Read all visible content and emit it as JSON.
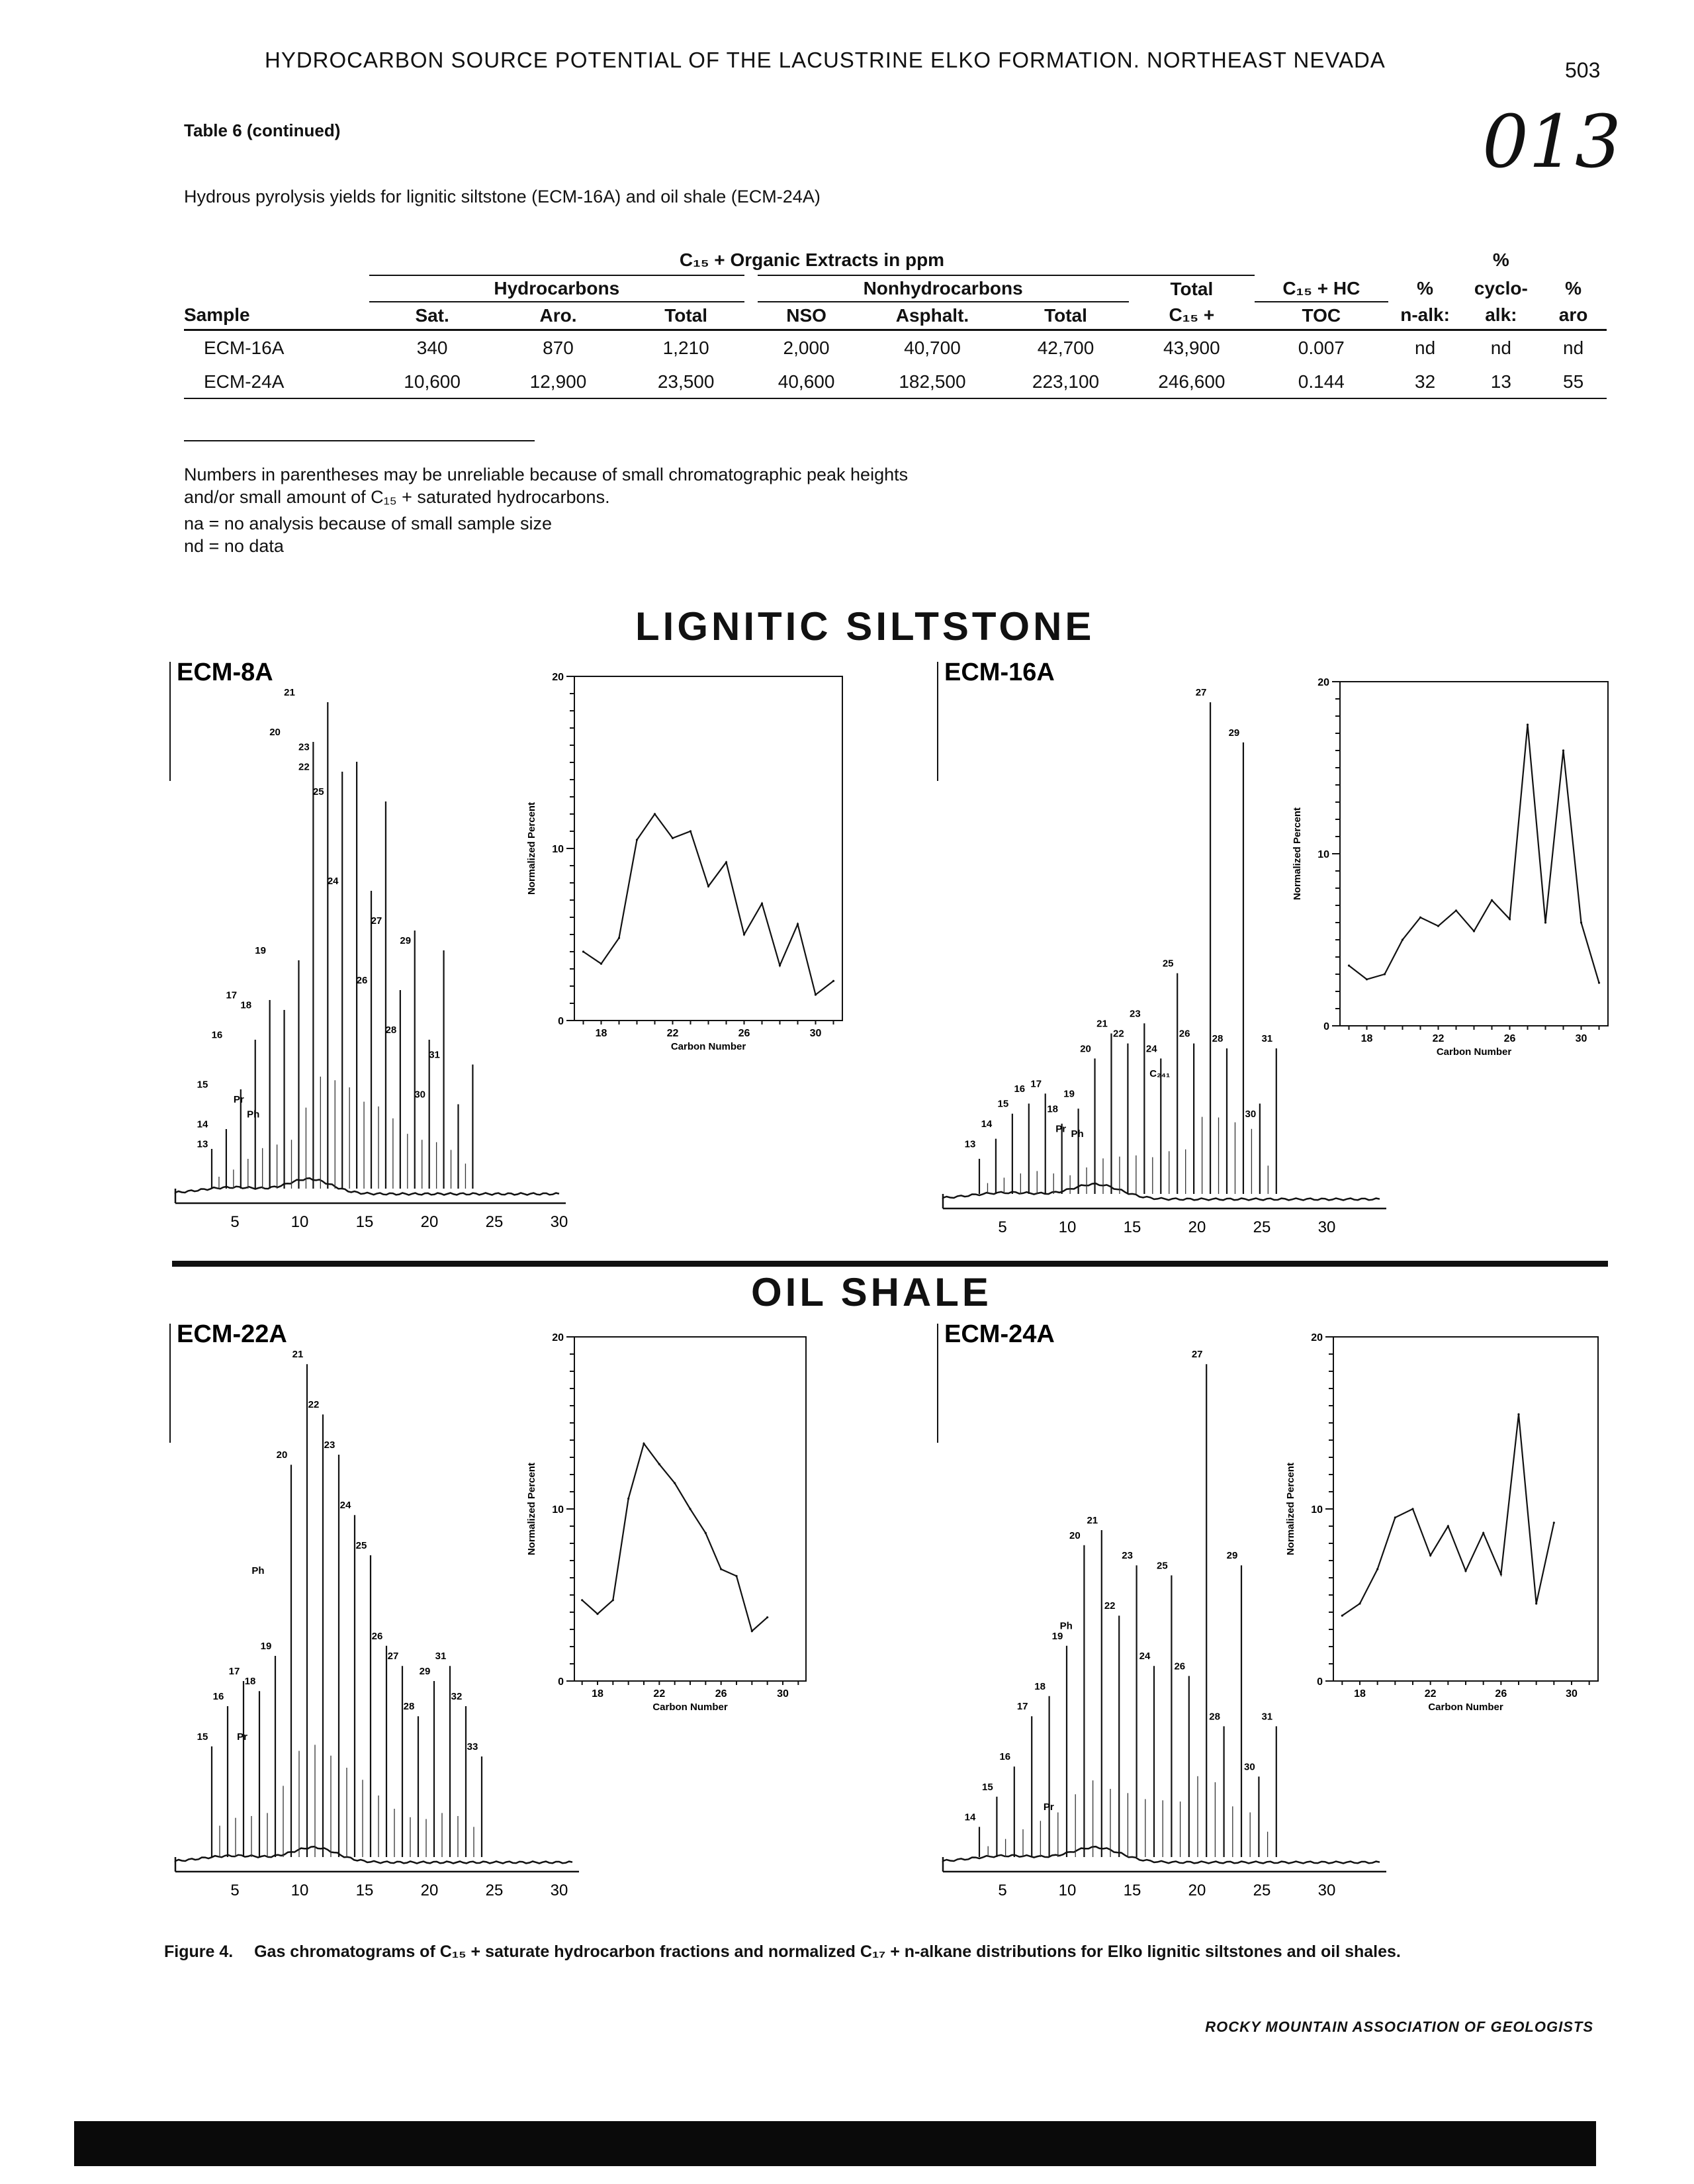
{
  "header": {
    "running_title": "HYDROCARBON SOURCE POTENTIAL OF THE LACUSTRINE ELKO FORMATION. NORTHEAST NEVADA",
    "page_number": "503",
    "handwritten_number": "013"
  },
  "table": {
    "caption": "Table 6 (continued)",
    "description": "Hydrous pyrolysis yields for lignitic siltstone (ECM-16A) and oil shale (ECM-24A)",
    "group_title": "C₁₅ + Organic Extracts in ppm",
    "group_hydrocarbons": "Hydrocarbons",
    "group_nonhydrocarbons": "Nonhydrocarbons",
    "columns": {
      "sample": "Sample",
      "sat": "Sat.",
      "aro": "Aro.",
      "hc_total": "Total",
      "nso": "NSO",
      "asphalt": "Asphalt.",
      "nhc_total": "Total",
      "total_top": "Total",
      "total_bottom": "C₁₅ +",
      "hc_toc_top": "C₁₅ + HC",
      "hc_toc_bottom": "TOC",
      "nalk_top": "%",
      "nalk_bottom": "n-alk:",
      "cyclo_top": "%",
      "cyclo_mid": "cyclo-",
      "cyclo_bottom": "alk:",
      "aro_top": "%",
      "aro_bottom": "aro"
    },
    "rows": [
      {
        "sample": "ECM-16A",
        "sat": "340",
        "aro": "870",
        "hc_total": "1,210",
        "nso": "2,000",
        "asphalt": "40,700",
        "nhc_total": "42,700",
        "total": "43,900",
        "hc_toc": "0.007",
        "nalk": "nd",
        "cyclo": "nd",
        "aro_pct": "nd"
      },
      {
        "sample": "ECM-24A",
        "sat": "10,600",
        "aro": "12,900",
        "hc_total": "23,500",
        "nso": "40,600",
        "asphalt": "182,500",
        "nhc_total": "223,100",
        "total": "246,600",
        "hc_toc": "0.144",
        "nalk": "32",
        "cyclo": "13",
        "aro_pct": "55"
      }
    ],
    "notes": [
      "Numbers in parentheses may be unreliable because of small chromatographic peak heights",
      "and/or small amount of C₁₅ + saturated hydrocarbons.",
      "na = no analysis because of small sample size",
      "nd = no data"
    ]
  },
  "sections": {
    "lignitic": "LIGNITIC SILTSTONE",
    "oil_shale": "OIL SHALE"
  },
  "figure": {
    "caption_label": "Figure 4.",
    "caption_text": "Gas chromatograms of C₁₅ + saturate hydrocarbon fractions and normalized C₁₇ + n-alkane distributions for Elko lignitic siltstones and oil shales.",
    "organization": "ROCKY MOUNTAIN ASSOCIATION OF GEOLOGISTS",
    "inset_ylabel": "Normalized Percent",
    "inset_xlabel": "Carbon Number"
  },
  "chart_data": [
    {
      "type": "line",
      "sample": "ECM-8A",
      "x": [
        17,
        18,
        19,
        20,
        21,
        22,
        23,
        24,
        25,
        26,
        27,
        28,
        29,
        30,
        31
      ],
      "y": [
        4.0,
        3.3,
        4.8,
        10.5,
        12.0,
        10.6,
        11.0,
        7.8,
        9.2,
        5.0,
        6.8,
        3.2,
        5.6,
        1.5,
        2.3
      ],
      "xlabel": "Carbon Number",
      "ylabel": "Normalized Percent",
      "xticks": [
        18,
        22,
        26,
        30
      ],
      "yticks": [
        0,
        10,
        20
      ],
      "ylim": [
        0,
        20
      ]
    },
    {
      "type": "line",
      "sample": "ECM-16A",
      "x": [
        17,
        18,
        19,
        20,
        21,
        22,
        23,
        24,
        25,
        26,
        27,
        28,
        29,
        30,
        31
      ],
      "y": [
        3.5,
        2.7,
        3.0,
        5.0,
        6.3,
        5.8,
        6.7,
        5.5,
        7.3,
        6.2,
        17.5,
        6.0,
        16.0,
        6.0,
        2.5
      ],
      "xlabel": "Carbon Number",
      "ylabel": "Normalized Percent",
      "xticks": [
        18,
        22,
        26,
        30
      ],
      "yticks": [
        0,
        10,
        20
      ],
      "ylim": [
        0,
        20
      ]
    },
    {
      "type": "line",
      "sample": "ECM-22A",
      "x": [
        17,
        18,
        19,
        20,
        21,
        22,
        23,
        24,
        25,
        26,
        27,
        28,
        29
      ],
      "y": [
        4.7,
        3.9,
        4.7,
        10.6,
        13.8,
        12.6,
        11.5,
        10.0,
        8.6,
        6.5,
        6.1,
        2.9,
        3.7
      ],
      "xlabel": "Carbon Number",
      "ylabel": "Normalized Percent",
      "xticks": [
        18,
        22,
        26,
        30
      ],
      "yticks": [
        0,
        10,
        20
      ],
      "ylim": [
        0,
        20
      ]
    },
    {
      "type": "line",
      "sample": "ECM-24A",
      "x": [
        17,
        18,
        19,
        20,
        21,
        22,
        23,
        24,
        25,
        26,
        27,
        28,
        29
      ],
      "y": [
        3.8,
        4.5,
        6.5,
        9.5,
        10.0,
        7.3,
        9.0,
        6.4,
        8.6,
        6.2,
        15.5,
        4.5,
        9.2
      ],
      "xlabel": "Carbon Number",
      "ylabel": "Normalized Percent",
      "xticks": [
        18,
        22,
        26,
        30
      ],
      "yticks": [
        0,
        10,
        20
      ],
      "ylim": [
        0,
        20
      ]
    }
  ],
  "chromatograms": [
    {
      "id": "ECM-8A",
      "x_ticks": [
        "5",
        "10",
        "15",
        "20",
        "25",
        "30"
      ],
      "labels": [
        "13",
        "14",
        "15",
        "16",
        "17",
        "18",
        "19",
        "20",
        "21",
        "22",
        "23",
        "24",
        "25",
        "26",
        "27",
        "28",
        "29",
        "30",
        "31",
        "Pr",
        "Ph"
      ],
      "peaks": [
        0.08,
        0.12,
        0.2,
        0.3,
        0.38,
        0.36,
        0.46,
        0.9,
        0.98,
        0.84,
        0.86,
        0.6,
        0.78,
        0.4,
        0.52,
        0.3,
        0.48,
        0.17,
        0.25
      ]
    },
    {
      "id": "ECM-16A",
      "x_ticks": [
        "5",
        "10",
        "15",
        "20",
        "25",
        "30"
      ],
      "labels": [
        "13",
        "14",
        "15",
        "16",
        "17",
        "18",
        "19",
        "20",
        "21",
        "22",
        "23",
        "24",
        "25",
        "26",
        "27",
        "28",
        "29",
        "30",
        "31",
        "Pr",
        "Ph",
        "C₂₄₁"
      ],
      "peaks": [
        0.07,
        0.11,
        0.16,
        0.18,
        0.2,
        0.14,
        0.17,
        0.27,
        0.32,
        0.3,
        0.34,
        0.27,
        0.44,
        0.3,
        0.98,
        0.29,
        0.9,
        0.18,
        0.29
      ]
    },
    {
      "id": "ECM-22A",
      "x_ticks": [
        "5",
        "10",
        "15",
        "20",
        "25",
        "30"
      ],
      "labels": [
        "15",
        "16",
        "17",
        "18",
        "19",
        "20",
        "21",
        "22",
        "23",
        "24",
        "25",
        "26",
        "27",
        "28",
        "29",
        "31",
        "32",
        "33",
        "Ph",
        "Pr"
      ],
      "peaks": [
        0.22,
        0.3,
        0.35,
        0.33,
        0.4,
        0.78,
        0.98,
        0.88,
        0.8,
        0.68,
        0.6,
        0.42,
        0.38,
        0.28,
        0.35,
        0.38,
        0.3,
        0.2
      ]
    },
    {
      "id": "ECM-24A",
      "x_ticks": [
        "5",
        "10",
        "15",
        "20",
        "25",
        "30"
      ],
      "labels": [
        "14",
        "15",
        "16",
        "17",
        "18",
        "19",
        "20",
        "21",
        "22",
        "23",
        "24",
        "25",
        "26",
        "27",
        "28",
        "29",
        "30",
        "31",
        "Pr",
        "Ph"
      ],
      "peaks": [
        0.06,
        0.12,
        0.18,
        0.28,
        0.32,
        0.42,
        0.62,
        0.65,
        0.48,
        0.58,
        0.38,
        0.56,
        0.36,
        0.98,
        0.26,
        0.58,
        0.16,
        0.26
      ]
    }
  ]
}
